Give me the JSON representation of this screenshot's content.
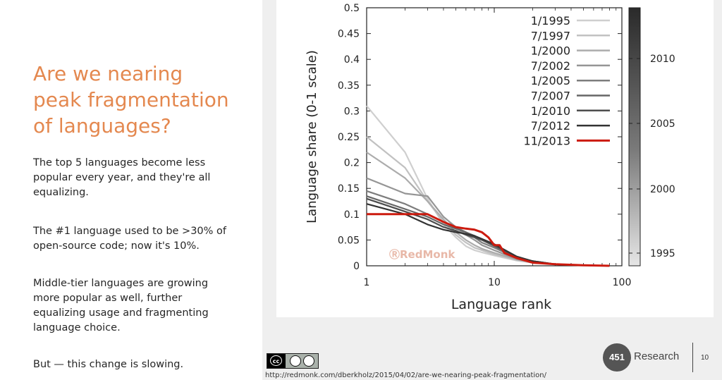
{
  "slide": {
    "title_lines": [
      "Are we nearing",
      "peak fragmentation",
      "of languages?"
    ],
    "paragraphs": [
      [
        "The top 5 languages become less",
        "popular every year, and they're all",
        "equalizing."
      ],
      [
        "The #1 language used to be >30% of",
        "open-source code; now it's 10%."
      ],
      [
        "Middle-tier languages are growing",
        "more popular as well, further",
        "equalizing usage and fragmenting",
        "language choice."
      ],
      [
        "But — this change is slowing."
      ]
    ],
    "footer_url": "http://redmonk.com/dberkholz/2015/04/02/are-we-nearing-peak-fragmentation/",
    "logo_number": "451",
    "logo_word": "Research",
    "page_number": "10",
    "cc_icon": "creative-commons-icon"
  },
  "chart_data": {
    "type": "line",
    "title": "",
    "xlabel": "Language rank",
    "ylabel": "Language share (0-1 scale)",
    "x_scale": "log",
    "xlim": [
      1,
      100
    ],
    "ylim": [
      0,
      0.5
    ],
    "x_ticks": [
      "1",
      "10",
      "100"
    ],
    "y_ticks": [
      "0",
      "0.05",
      "0.1",
      "0.15",
      "0.2",
      "0.25",
      "0.3",
      "0.35",
      "0.4",
      "0.45",
      "0.5"
    ],
    "watermark": "RedMonk",
    "legend_position": "top-right",
    "colorbar_ticks": [
      "2010",
      "2005",
      "2000",
      "1995"
    ],
    "series": [
      {
        "name": "1/1995",
        "color": "#cfcfcf",
        "x": [
          1,
          2,
          3,
          4,
          5,
          6,
          7,
          8,
          10,
          15,
          20,
          30,
          50,
          80
        ],
        "y": [
          0.31,
          0.22,
          0.13,
          0.08,
          0.055,
          0.038,
          0.03,
          0.026,
          0.02,
          0.01,
          0.006,
          0.003,
          0.001,
          0.0
        ]
      },
      {
        "name": "7/1997",
        "color": "#c1c1c1",
        "x": [
          1,
          2,
          3,
          4,
          5,
          6,
          7,
          8,
          10,
          15,
          20,
          30,
          50,
          80
        ],
        "y": [
          0.25,
          0.19,
          0.125,
          0.085,
          0.06,
          0.045,
          0.035,
          0.03,
          0.022,
          0.011,
          0.006,
          0.003,
          0.001,
          0.0
        ]
      },
      {
        "name": "1/2000",
        "color": "#acacac",
        "x": [
          1,
          2,
          3,
          4,
          5,
          6,
          7,
          8,
          10,
          15,
          20,
          30,
          50,
          80
        ],
        "y": [
          0.22,
          0.17,
          0.125,
          0.09,
          0.065,
          0.05,
          0.04,
          0.033,
          0.025,
          0.012,
          0.007,
          0.003,
          0.001,
          0.0
        ]
      },
      {
        "name": "7/2002",
        "color": "#959595",
        "x": [
          1,
          2,
          3,
          4,
          5,
          6,
          7,
          8,
          10,
          15,
          20,
          30,
          50,
          80
        ],
        "y": [
          0.17,
          0.14,
          0.135,
          0.095,
          0.075,
          0.06,
          0.05,
          0.04,
          0.03,
          0.013,
          0.008,
          0.003,
          0.001,
          0.0
        ]
      },
      {
        "name": "1/2005",
        "color": "#7d7d7d",
        "x": [
          1,
          2,
          3,
          4,
          5,
          6,
          7,
          8,
          10,
          15,
          20,
          30,
          50,
          80
        ],
        "y": [
          0.145,
          0.12,
          0.1,
          0.085,
          0.075,
          0.065,
          0.055,
          0.045,
          0.035,
          0.015,
          0.008,
          0.003,
          0.001,
          0.0
        ]
      },
      {
        "name": "7/2007",
        "color": "#666666",
        "x": [
          1,
          2,
          3,
          4,
          5,
          6,
          7,
          8,
          10,
          15,
          20,
          30,
          50,
          80
        ],
        "y": [
          0.135,
          0.11,
          0.095,
          0.08,
          0.072,
          0.065,
          0.058,
          0.05,
          0.038,
          0.016,
          0.009,
          0.003,
          0.001,
          0.0
        ]
      },
      {
        "name": "1/2010",
        "color": "#4d4d4d",
        "x": [
          1,
          2,
          3,
          4,
          5,
          6,
          7,
          8,
          10,
          15,
          20,
          30,
          50,
          80
        ],
        "y": [
          0.13,
          0.105,
          0.09,
          0.075,
          0.068,
          0.06,
          0.055,
          0.05,
          0.04,
          0.017,
          0.009,
          0.003,
          0.001,
          0.0
        ]
      },
      {
        "name": "7/2012",
        "color": "#333333",
        "x": [
          1,
          2,
          3,
          4,
          5,
          6,
          7,
          8,
          10,
          15,
          20,
          30,
          50,
          80
        ],
        "y": [
          0.12,
          0.1,
          0.08,
          0.07,
          0.065,
          0.062,
          0.058,
          0.052,
          0.042,
          0.018,
          0.009,
          0.003,
          0.001,
          0.0
        ]
      },
      {
        "name": "11/2013",
        "color": "#cc1a0e",
        "x": [
          1,
          2,
          3,
          4,
          5,
          6,
          7,
          8,
          9,
          10,
          11,
          12,
          15,
          20,
          30,
          50,
          80
        ],
        "y": [
          0.1,
          0.1,
          0.1,
          0.085,
          0.075,
          0.072,
          0.07,
          0.065,
          0.055,
          0.04,
          0.04,
          0.025,
          0.015,
          0.006,
          0.003,
          0.001,
          0.0
        ]
      }
    ]
  }
}
